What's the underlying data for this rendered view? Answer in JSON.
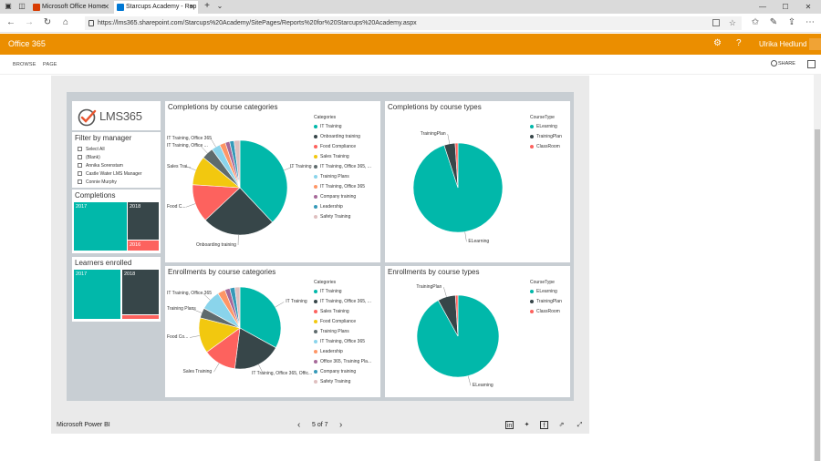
{
  "browser": {
    "tabs": [
      {
        "label": "Microsoft Office Home",
        "favicon_color": "#d83b01"
      },
      {
        "label": "Starcups Academy - Rep",
        "favicon_color": "#0078d4"
      }
    ],
    "url": "https://lms365.sharepoint.com/Starcups%20Academy/SitePages/Reports%20for%20Starcups%20Academy.aspx",
    "new_tab": "+",
    "tab_dropdown": "⌄"
  },
  "o365": {
    "brand": "Office 365",
    "user": "Ulrika Hedlund",
    "accent": "#eb8e00"
  },
  "ribbon": {
    "tabs": [
      "BROWSE",
      "PAGE"
    ],
    "share": "SHARE"
  },
  "report": {
    "logo_text": "LMS365",
    "filter": {
      "title": "Filter by manager",
      "options": [
        "Select All",
        "(Blank)",
        "Annika Sorenstam",
        "Castle Water LMS Manager",
        "Connie Murphy"
      ]
    },
    "completions": {
      "title": "Completions",
      "blocks": [
        {
          "label": "2017",
          "color": "#01b8aa"
        },
        {
          "label": "2018",
          "color": "#374649"
        },
        {
          "label": "2016",
          "color": "#fd625e"
        }
      ]
    },
    "learners": {
      "title": "Learners enrolled",
      "blocks": [
        {
          "label": "2017",
          "color": "#01b8aa"
        },
        {
          "label": "2018",
          "color": "#374649"
        },
        {
          "label": "",
          "color": "#fd625e"
        }
      ]
    },
    "footer": {
      "brand": "Microsoft Power BI",
      "page": "5 of 7"
    }
  },
  "chart_data": [
    {
      "type": "pie",
      "title": "Completions by course categories",
      "legend_title": "Categories",
      "legend_position": "right",
      "categories": [
        "IT Training",
        "Onboarding training",
        "Food Compliance",
        "Sales Training",
        "IT Training, Office 365, ...",
        "Training Plans",
        "IT Training, Office 365",
        "Company training",
        "Leadership",
        "Safety Training"
      ],
      "values": [
        38,
        25,
        13,
        10,
        4,
        3,
        2,
        1.5,
        1.5,
        2
      ],
      "colors": [
        "#01b8aa",
        "#374649",
        "#fd625e",
        "#f2c80f",
        "#5f6b6d",
        "#8ad4eb",
        "#fe9666",
        "#a66999",
        "#3599b8",
        "#dfbfbf"
      ],
      "slice_labels": [
        "IT Training",
        "Onboarding training",
        "Food C...",
        "Sales Trai...",
        "IT Training, Office ...",
        "IT Training, Office 365",
        "",
        "",
        "",
        ""
      ]
    },
    {
      "type": "pie",
      "title": "Completions by course types",
      "legend_title": "CourseType",
      "legend_position": "right",
      "categories": [
        "ELearning",
        "TrainingPlan",
        "ClassRoom"
      ],
      "values": [
        95,
        4,
        1
      ],
      "colors": [
        "#01b8aa",
        "#374649",
        "#fd625e"
      ],
      "slice_labels": [
        "ELearning",
        "TrainingPlan",
        ""
      ]
    },
    {
      "type": "pie",
      "title": "Enrollments by course categories",
      "legend_title": "Categories",
      "legend_position": "right",
      "categories": [
        "IT Training",
        "IT Training, Office 365, ...",
        "Sales Training",
        "Food Compliance",
        "Training Plans",
        "IT Training, Office 365",
        "Leadership",
        "Office 365, Training Pla...",
        "Company training",
        "Safety Training"
      ],
      "values": [
        33,
        19,
        13,
        14,
        4,
        8,
        3,
        2,
        2,
        2
      ],
      "colors": [
        "#01b8aa",
        "#374649",
        "#fd625e",
        "#f2c80f",
        "#5f6b6d",
        "#8ad4eb",
        "#fe9666",
        "#a66999",
        "#3599b8",
        "#dfbfbf"
      ],
      "slice_labels": [
        "IT Training",
        "IT Training, Office 365, Offic...",
        "Sales Training",
        "Food Co...",
        "Training Plans",
        "IT Training, Office 365",
        "",
        "",
        "",
        ""
      ]
    },
    {
      "type": "pie",
      "title": "Enrollments by course types",
      "legend_title": "CourseType",
      "legend_position": "right",
      "categories": [
        "ELearning",
        "TrainingPlan",
        "ClassRoom"
      ],
      "values": [
        92,
        7,
        1
      ],
      "colors": [
        "#01b8aa",
        "#374649",
        "#fd625e"
      ],
      "slice_labels": [
        "ELearning",
        "TrainingPlan",
        ""
      ]
    }
  ]
}
